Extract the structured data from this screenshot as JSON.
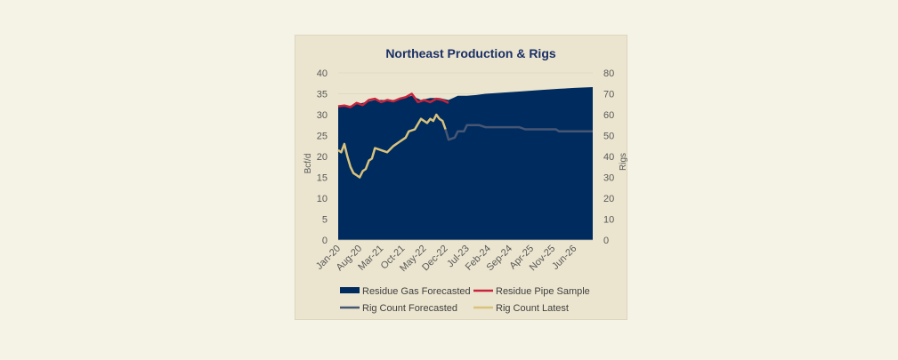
{
  "chart_data": {
    "type": "area",
    "title": "Northeast Production & Rigs",
    "ylabel": "Bcf/d",
    "y2label": "Rigs",
    "ylim": [
      0,
      40
    ],
    "y2lim": [
      0,
      80
    ],
    "yticks": [
      0,
      5,
      10,
      15,
      20,
      25,
      30,
      35,
      40
    ],
    "y2ticks": [
      0,
      10,
      20,
      30,
      40,
      50,
      60,
      70,
      80
    ],
    "xrange": [
      "2020-01",
      "2026-12"
    ],
    "xticks": [
      "Jan-20",
      "Aug-20",
      "Mar-21",
      "Oct-21",
      "May-22",
      "Dec-22",
      "Jul-23",
      "Feb-24",
      "Sep-24",
      "Apr-25",
      "Nov-25",
      "Jun-26"
    ],
    "grid": true,
    "legend_position": "bottom",
    "series": [
      {
        "name": "Residue Gas Forecasted",
        "type": "area",
        "axis": "left",
        "color": "#002b5e",
        "points": [
          [
            "2020-01",
            32.0
          ],
          [
            "2020-04",
            32.0
          ],
          [
            "2020-07",
            32.5
          ],
          [
            "2020-10",
            33.0
          ],
          [
            "2021-01",
            33.5
          ],
          [
            "2021-04",
            33.5
          ],
          [
            "2021-07",
            33.5
          ],
          [
            "2021-10",
            34.0
          ],
          [
            "2022-01",
            34.5
          ],
          [
            "2022-04",
            33.5
          ],
          [
            "2022-07",
            34.0
          ],
          [
            "2022-10",
            34.0
          ],
          [
            "2023-01",
            33.5
          ],
          [
            "2023-04",
            34.5
          ],
          [
            "2023-07",
            34.5
          ],
          [
            "2023-10",
            34.7
          ],
          [
            "2024-01",
            35.0
          ],
          [
            "2024-07",
            35.3
          ],
          [
            "2025-01",
            35.6
          ],
          [
            "2025-07",
            35.9
          ],
          [
            "2026-01",
            36.2
          ],
          [
            "2026-06",
            36.4
          ],
          [
            "2026-12",
            36.6
          ]
        ]
      },
      {
        "name": "Residue Pipe Sample",
        "type": "line",
        "axis": "left",
        "color": "#c8243c",
        "points": [
          [
            "2020-01",
            32.0
          ],
          [
            "2020-03",
            32.2
          ],
          [
            "2020-05",
            31.8
          ],
          [
            "2020-07",
            32.8
          ],
          [
            "2020-09",
            32.3
          ],
          [
            "2020-11",
            33.5
          ],
          [
            "2021-01",
            33.8
          ],
          [
            "2021-03",
            33.0
          ],
          [
            "2021-05",
            33.5
          ],
          [
            "2021-07",
            33.2
          ],
          [
            "2021-09",
            33.8
          ],
          [
            "2021-11",
            34.2
          ],
          [
            "2022-01",
            35.0
          ],
          [
            "2022-03",
            33.0
          ],
          [
            "2022-05",
            33.5
          ],
          [
            "2022-07",
            33.0
          ],
          [
            "2022-09",
            33.8
          ],
          [
            "2022-11",
            33.5
          ],
          [
            "2023-01",
            32.8
          ]
        ]
      },
      {
        "name": "Rig Count Forecasted",
        "type": "line",
        "axis": "right",
        "color": "#465673",
        "points": [
          [
            "2022-12",
            53
          ],
          [
            "2023-01",
            48
          ],
          [
            "2023-03",
            49
          ],
          [
            "2023-04",
            52
          ],
          [
            "2023-06",
            52
          ],
          [
            "2023-07",
            55
          ],
          [
            "2023-11",
            55
          ],
          [
            "2024-01",
            54
          ],
          [
            "2024-12",
            54
          ],
          [
            "2025-02",
            53
          ],
          [
            "2025-12",
            53
          ],
          [
            "2026-01",
            52
          ],
          [
            "2026-12",
            52
          ]
        ]
      },
      {
        "name": "Rig Count Latest",
        "type": "line",
        "axis": "right",
        "color": "#d9c27c",
        "points": [
          [
            "2020-01",
            43
          ],
          [
            "2020-02",
            42
          ],
          [
            "2020-03",
            46
          ],
          [
            "2020-04",
            40
          ],
          [
            "2020-05",
            35
          ],
          [
            "2020-06",
            32
          ],
          [
            "2020-07",
            31
          ],
          [
            "2020-08",
            30
          ],
          [
            "2020-09",
            33
          ],
          [
            "2020-10",
            34
          ],
          [
            "2020-11",
            38
          ],
          [
            "2020-12",
            39
          ],
          [
            "2021-01",
            44
          ],
          [
            "2021-03",
            43
          ],
          [
            "2021-05",
            42
          ],
          [
            "2021-07",
            45
          ],
          [
            "2021-09",
            47
          ],
          [
            "2021-11",
            49
          ],
          [
            "2021-12",
            52
          ],
          [
            "2022-02",
            53
          ],
          [
            "2022-04",
            58
          ],
          [
            "2022-06",
            56
          ],
          [
            "2022-07",
            58
          ],
          [
            "2022-08",
            57
          ],
          [
            "2022-09",
            60
          ],
          [
            "2022-10",
            58
          ],
          [
            "2022-11",
            57
          ],
          [
            "2022-12",
            53
          ]
        ]
      }
    ]
  }
}
